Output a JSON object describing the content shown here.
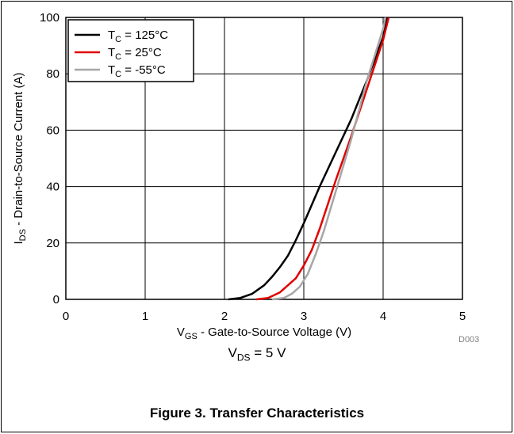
{
  "figure": {
    "caption": "Figure 3. Transfer Characteristics",
    "condition": {
      "main": "V",
      "sub": "DS",
      "rest": " = 5 V"
    },
    "code": "D003"
  },
  "colors": {
    "c125": "#000000",
    "c25": "#e00000",
    "cm55": "#a6a6a6",
    "grid": "#000000"
  },
  "chart_data": {
    "type": "line",
    "xlabel": {
      "main": "V",
      "sub": "GS",
      "rest": " - Gate-to-Source Voltage (V)"
    },
    "ylabel": {
      "main": "I",
      "sub": "DS",
      "rest": " - Drain-to-Source Current (A)"
    },
    "xlim": [
      0,
      5
    ],
    "ylim": [
      0,
      100
    ],
    "xticks": [
      "0",
      "1",
      "2",
      "3",
      "4",
      "5"
    ],
    "yticks": [
      "0",
      "20",
      "40",
      "60",
      "80",
      "100"
    ],
    "grid": true,
    "legend_position": "top-left",
    "series": [
      {
        "name": "T_C = 125°C",
        "label": {
          "main": "T",
          "sub": "C",
          "rest": " = 125°C"
        },
        "color": "#000000",
        "x": [
          2.05,
          2.2,
          2.35,
          2.5,
          2.6,
          2.7,
          2.8,
          2.9,
          3.0,
          3.2,
          3.4,
          3.6,
          3.8,
          4.0,
          4.05
        ],
        "y": [
          0,
          0.5,
          2,
          5,
          8,
          11.5,
          15.5,
          21,
          27,
          40,
          52,
          64,
          78,
          93,
          100
        ]
      },
      {
        "name": "T_C = 25°C",
        "label": {
          "main": "T",
          "sub": "C",
          "rest": " = 25°C"
        },
        "color": "#e00000",
        "x": [
          2.4,
          2.55,
          2.7,
          2.8,
          2.9,
          3.0,
          3.1,
          3.2,
          3.4,
          3.6,
          3.8,
          4.0,
          4.07
        ],
        "y": [
          0,
          0.5,
          2.5,
          5,
          7.5,
          12,
          17.5,
          25,
          42,
          58,
          75,
          92,
          100
        ]
      },
      {
        "name": "T_C = -55°C",
        "label": {
          "main": "T",
          "sub": "C",
          "rest": " = -55°C"
        },
        "color": "#a6a6a6",
        "x": [
          2.6,
          2.75,
          2.85,
          2.95,
          3.05,
          3.15,
          3.25,
          3.4,
          3.6,
          3.8,
          4.0,
          4.03
        ],
        "y": [
          0,
          0.5,
          2,
          4.5,
          9,
          16,
          24,
          38,
          57,
          78,
          96,
          100
        ]
      }
    ]
  }
}
